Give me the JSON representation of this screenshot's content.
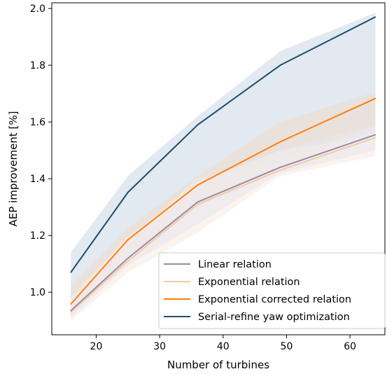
{
  "chart_data": {
    "type": "line",
    "xlabel": "Number of turbines",
    "ylabel": "AEP improvement [%]",
    "xlim": [
      13,
      65.5
    ],
    "ylim": [
      0.85,
      2.02
    ],
    "x_ticks": [
      20,
      30,
      40,
      50,
      60
    ],
    "y_ticks": [
      1.0,
      1.2,
      1.4,
      1.6,
      1.8,
      2.0
    ],
    "y_tick_labels": [
      "1.0",
      "1.2",
      "1.4",
      "1.6",
      "1.8",
      "2.0"
    ],
    "grid": false,
    "legend_position": "lower-right",
    "x": [
      16,
      25,
      36,
      49,
      64
    ],
    "series": [
      {
        "name": "Serial-refine yaw optimization",
        "color": "#1b4f6b",
        "band_color": "#dde5ee",
        "values": [
          1.07,
          1.352,
          1.59,
          1.8,
          1.97
        ],
        "lower": [
          0.98,
          1.195,
          1.385,
          1.5,
          1.55
        ],
        "upper": [
          1.14,
          1.41,
          1.62,
          1.85,
          1.985
        ]
      },
      {
        "name": "Exponential corrected relation",
        "color": "#ff7f0e",
        "band_color": "#efdccd",
        "values": [
          0.958,
          1.185,
          1.378,
          1.53,
          1.683
        ],
        "lower": [
          0.915,
          1.13,
          1.3,
          1.44,
          1.57
        ],
        "upper": [
          1.02,
          1.225,
          1.41,
          1.6,
          1.705
        ]
      },
      {
        "name": "Exponential relation",
        "color": "#f7c9a2",
        "band_color": "#f8ebe2",
        "values": [
          0.93,
          1.11,
          1.31,
          1.43,
          1.545
        ],
        "lower": [
          0.9,
          1.07,
          1.21,
          1.41,
          1.48
        ],
        "upper": [
          0.98,
          1.18,
          1.4,
          1.47,
          1.585
        ]
      },
      {
        "name": "Linear relation",
        "color": "#9a8aa2",
        "band_color": "#eae8ee",
        "values": [
          0.935,
          1.12,
          1.318,
          1.44,
          1.555
        ],
        "lower": [
          0.91,
          1.095,
          1.24,
          1.42,
          1.5
        ],
        "upper": [
          0.975,
          1.17,
          1.38,
          1.5,
          1.59
        ]
      }
    ],
    "legend_order": [
      "Linear relation",
      "Exponential relation",
      "Exponential corrected relation",
      "Serial-refine yaw optimization"
    ]
  }
}
